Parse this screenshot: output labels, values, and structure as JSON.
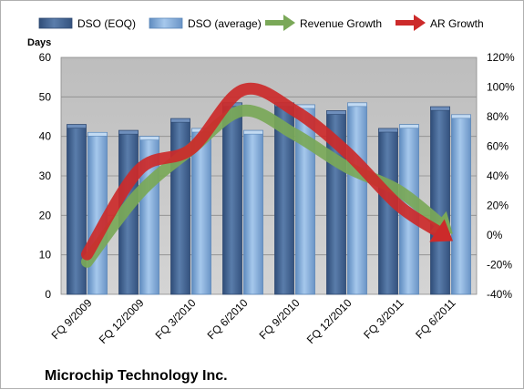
{
  "chart_data": {
    "type": "bar",
    "title": "",
    "footer_title": "Microchip Technology Inc.",
    "ylabel": "Days",
    "categories": [
      "FQ 9/2009",
      "FQ 12/2009",
      "FQ 3/2010",
      "FQ 6/2010",
      "FQ 9/2010",
      "FQ 12/2010",
      "FQ 3/2011",
      "FQ 6/2011"
    ],
    "ylim": [
      0,
      60
    ],
    "yticks": [
      0,
      10,
      20,
      30,
      40,
      50,
      60
    ],
    "y2lim": [
      -40,
      120
    ],
    "y2ticks": [
      "-40%",
      "-20%",
      "0%",
      "20%",
      "40%",
      "60%",
      "80%",
      "100%",
      "120%"
    ],
    "grid": true,
    "legend_position": "top",
    "series": [
      {
        "name": "DSO (EOQ)",
        "kind": "bar",
        "axis": "left",
        "color": "#4a6a97",
        "values": [
          43,
          41.5,
          44.5,
          48.5,
          48.5,
          46.5,
          42,
          47.5
        ]
      },
      {
        "name": "DSO (average)",
        "kind": "bar",
        "axis": "left",
        "color": "#7ea8d8",
        "values": [
          41,
          40,
          42,
          41.5,
          48,
          48.5,
          43,
          45.5
        ]
      },
      {
        "name": "Revenue Growth",
        "kind": "line-arrow",
        "axis": "right",
        "color": "#7aa858",
        "values": [
          -18,
          28,
          58,
          84,
          68,
          46,
          30,
          2
        ]
      },
      {
        "name": "AR Growth",
        "kind": "line-arrow",
        "axis": "right",
        "color": "#cc2a2a",
        "values": [
          -13,
          44,
          58,
          98,
          84,
          56,
          20,
          -3
        ]
      }
    ]
  }
}
